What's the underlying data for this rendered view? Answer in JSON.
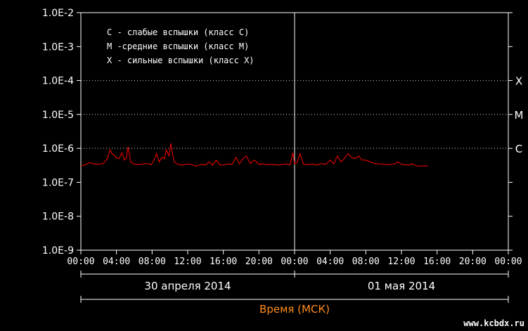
{
  "chart_data": {
    "type": "line",
    "y_scale": "log",
    "ylim": [
      "1.0E-9",
      "1.0E-2"
    ],
    "y_tick_labels": [
      "1.0E-2",
      "1.0E-3",
      "1.0E-4",
      "1.0E-5",
      "1.0E-6",
      "1.0E-7",
      "1.0E-8",
      "1.0E-9"
    ],
    "x_tick_labels": [
      "00:00",
      "04:00",
      "08:00",
      "12:00",
      "16:00",
      "20:00",
      "00:00",
      "04:00",
      "08:00",
      "12:00",
      "16:00",
      "20:00",
      "00:00"
    ],
    "day_labels": [
      "30 апреля 2014",
      "01 мая 2014"
    ],
    "xlabel": "Время (МСК)",
    "legend": [
      "C - слабые вспышки (класс C)",
      "M -средние вспышки (класс M)",
      "X - сильные вспышки (класс X)"
    ],
    "class_levels": [
      {
        "label": "X",
        "value": 0.0001
      },
      {
        "label": "M",
        "value": 1e-05
      },
      {
        "label": "C",
        "value": 1e-06
      }
    ],
    "series": [
      {
        "color": "#ff0000",
        "x_hours": [
          0.0,
          0.5,
          1.0,
          1.5,
          2.0,
          2.5,
          3.0,
          3.3,
          3.5,
          3.8,
          4.0,
          4.3,
          4.6,
          4.9,
          5.1,
          5.3,
          5.6,
          5.9,
          6.2,
          6.5,
          7.0,
          7.5,
          7.9,
          8.2,
          8.5,
          8.8,
          9.1,
          9.4,
          9.6,
          9.9,
          10.1,
          10.3,
          10.5,
          10.8,
          11.2,
          11.6,
          12.0,
          12.5,
          13.0,
          13.5,
          14.0,
          14.4,
          14.8,
          15.2,
          15.6,
          16.0,
          16.5,
          17.0,
          17.4,
          17.8,
          18.2,
          18.6,
          19.0,
          19.5,
          20.0,
          20.5,
          21.0,
          21.5,
          22.0,
          22.5,
          23.0,
          23.5,
          23.8,
          24.0,
          24.3,
          24.6,
          25.0,
          25.5,
          26.0,
          26.5,
          27.0,
          27.5,
          28.0,
          28.4,
          28.8,
          29.2,
          29.6,
          30.0,
          30.4,
          30.8,
          31.2,
          31.6,
          32.0,
          32.5,
          33.0,
          33.5,
          34.0,
          34.4,
          34.8,
          35.2,
          35.6,
          36.0,
          36.4,
          36.8,
          37.2,
          37.6,
          38.0,
          38.5,
          39.0
        ],
        "y": [
          3e-07,
          3.3e-07,
          3.8e-07,
          3.5e-07,
          3.4e-07,
          3.6e-07,
          5e-07,
          9e-07,
          7e-07,
          6e-07,
          5.2e-07,
          5e-07,
          7.5e-07,
          4.5e-07,
          5e-07,
          1.1e-06,
          4e-07,
          3.5e-07,
          3.4e-07,
          3.3e-07,
          3.5e-07,
          3.6e-07,
          3.3e-07,
          4.5e-07,
          7e-07,
          4e-07,
          5.5e-07,
          5e-07,
          9e-07,
          6e-07,
          1.4e-06,
          6.5e-07,
          4e-07,
          3.5e-07,
          3.2e-07,
          3.3e-07,
          3.5e-07,
          3.3e-07,
          3e-07,
          3.4e-07,
          3.2e-07,
          4e-07,
          3.2e-07,
          4.5e-07,
          3.3e-07,
          3.2e-07,
          3.5e-07,
          3.4e-07,
          5.5e-07,
          3.5e-07,
          5e-07,
          6e-07,
          3.6e-07,
          4.5e-07,
          3.4e-07,
          3.5e-07,
          3.3e-07,
          3.4e-07,
          3.2e-07,
          3.3e-07,
          3.5e-07,
          3.3e-07,
          7.5e-07,
          3.5e-07,
          4e-07,
          7e-07,
          3.4e-07,
          3.3e-07,
          3.5e-07,
          3.2e-07,
          3.6e-07,
          3.4e-07,
          4.5e-07,
          3.5e-07,
          6e-07,
          4e-07,
          5e-07,
          7e-07,
          5.5e-07,
          5e-07,
          6e-07,
          4.5e-07,
          4.5e-07,
          4e-07,
          3.6e-07,
          3.5e-07,
          3.4e-07,
          3.3e-07,
          3.4e-07,
          3.5e-07,
          4e-07,
          3.4e-07,
          3.3e-07,
          3.2e-07,
          3.5e-07,
          3.1e-07,
          3e-07,
          3.1e-07,
          3e-07
        ]
      }
    ],
    "grid": "dotted at class levels",
    "cursor_line_hours": 24
  },
  "watermark": "www.kcbdx.ru",
  "colors": {
    "background": "#000000",
    "axis": "#ffffff",
    "series": "#ff0000",
    "axis_title": "#ff8c1a"
  }
}
